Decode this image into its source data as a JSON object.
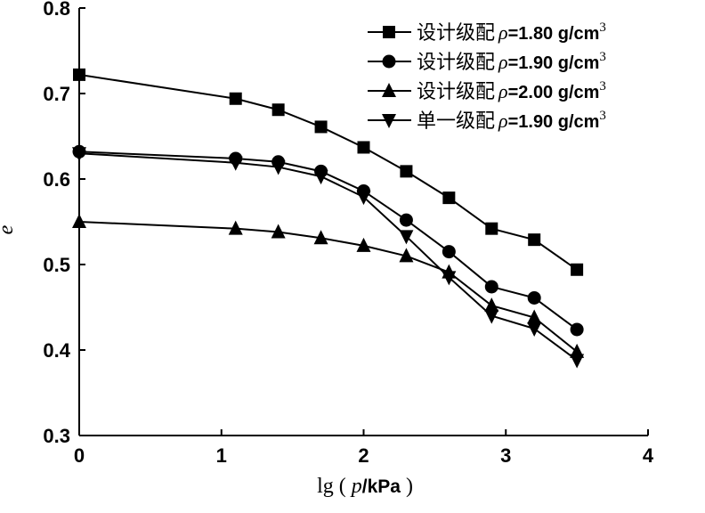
{
  "chart_data": {
    "type": "line",
    "title": "",
    "xlabel": "lg ( p/kPa )",
    "xlabel_parts": {
      "prefix": "lg ( ",
      "var": "p",
      "unit": "/kPa",
      "suffix": " )"
    },
    "ylabel": "e",
    "xlim": [
      0,
      4
    ],
    "ylim": [
      0.3,
      0.8
    ],
    "xticks": [
      "0",
      "1",
      "2",
      "3",
      "4"
    ],
    "yticks": [
      "0.3",
      "0.4",
      "0.5",
      "0.6",
      "0.7",
      "0.8"
    ],
    "grid": false,
    "legend_position": "top-right",
    "x": [
      0,
      1.1,
      1.4,
      1.7,
      2.0,
      2.3,
      2.6,
      2.9,
      3.2,
      3.5
    ],
    "series": [
      {
        "name": "设计级配 ρ=1.80 g/cm3",
        "label_cn": "设计级配",
        "label_val": "=1.80 g/cm",
        "marker": "square",
        "values": [
          0.722,
          0.694,
          0.681,
          0.661,
          0.637,
          0.609,
          0.578,
          0.542,
          0.529,
          0.494
        ]
      },
      {
        "name": "设计级配 ρ=1.90 g/cm3",
        "label_cn": "设计级配",
        "label_val": "=1.90 g/cm",
        "marker": "circle",
        "values": [
          0.632,
          0.624,
          0.62,
          0.609,
          0.586,
          0.552,
          0.515,
          0.474,
          0.461,
          0.424
        ]
      },
      {
        "name": "设计级配 ρ=2.00 g/cm3",
        "label_cn": "设计级配",
        "label_val": "=2.00 g/cm",
        "marker": "triangle",
        "values": [
          0.55,
          0.542,
          0.538,
          0.531,
          0.522,
          0.51,
          0.491,
          0.452,
          0.438,
          0.398
        ]
      },
      {
        "name": "单一级配 ρ=1.90 g/cm3",
        "label_cn": "单一级配",
        "label_val": "=1.90 g/cm",
        "marker": "triangle-down",
        "values": [
          0.63,
          0.619,
          0.614,
          0.603,
          0.579,
          0.533,
          0.485,
          0.44,
          0.425,
          0.388
        ]
      }
    ]
  }
}
